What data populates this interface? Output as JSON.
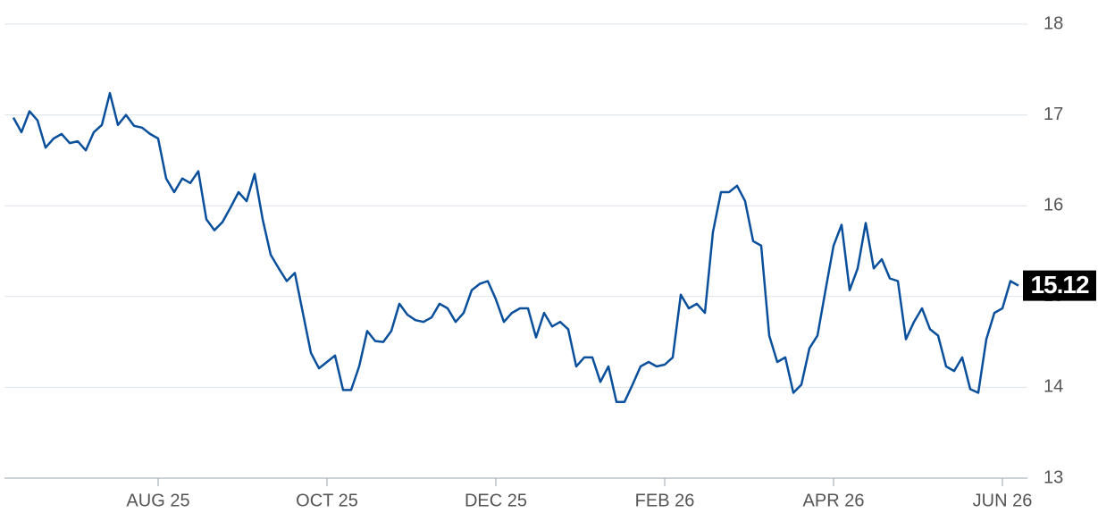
{
  "chart_data": {
    "type": "line",
    "color": "#0a4f9c",
    "categories": [
      null,
      null,
      null,
      null,
      null,
      null,
      null,
      null,
      null,
      null,
      null,
      null,
      null,
      null,
      null,
      null,
      null,
      null,
      "AUG 25",
      null,
      null,
      null,
      null,
      null,
      null,
      null,
      null,
      null,
      null,
      null,
      null,
      null,
      null,
      null,
      null,
      null,
      null,
      null,
      null,
      "OCT 25",
      null,
      null,
      null,
      null,
      null,
      null,
      null,
      null,
      null,
      null,
      null,
      null,
      null,
      null,
      null,
      null,
      null,
      null,
      null,
      null,
      "DEC 25",
      null,
      null,
      null,
      null,
      null,
      null,
      null,
      null,
      null,
      null,
      null,
      null,
      null,
      null,
      null,
      null,
      null,
      null,
      null,
      null,
      "FEB 26",
      null,
      null,
      null,
      null,
      null,
      null,
      null,
      null,
      null,
      null,
      null,
      null,
      null,
      null,
      null,
      null,
      null,
      null,
      null,
      null,
      "APR 26",
      null,
      null,
      null,
      null,
      null,
      null,
      null,
      null,
      null,
      null,
      null,
      null,
      null,
      null,
      null,
      null,
      null,
      null,
      null,
      null,
      "JUN 26",
      null,
      null
    ],
    "values": [
      16.97,
      16.81,
      17.04,
      16.94,
      16.64,
      16.74,
      16.79,
      16.69,
      16.71,
      16.61,
      16.81,
      16.89,
      17.24,
      16.89,
      17.0,
      16.88,
      16.86,
      16.79,
      16.74,
      16.3,
      16.15,
      16.3,
      16.25,
      16.38,
      15.85,
      15.73,
      15.82,
      15.98,
      16.15,
      16.05,
      16.35,
      15.85,
      15.46,
      15.31,
      15.17,
      15.26,
      14.82,
      14.38,
      14.21,
      14.28,
      14.35,
      13.97,
      13.97,
      14.23,
      14.62,
      14.51,
      14.5,
      14.62,
      14.92,
      14.8,
      14.74,
      14.72,
      14.77,
      14.92,
      14.87,
      14.72,
      14.82,
      15.07,
      15.14,
      15.17,
      14.97,
      14.72,
      14.82,
      14.87,
      14.87,
      14.55,
      14.82,
      14.67,
      14.72,
      14.64,
      14.23,
      14.33,
      14.33,
      14.06,
      14.23,
      13.84,
      13.84,
      14.03,
      14.23,
      14.28,
      14.23,
      14.25,
      14.33,
      15.02,
      14.87,
      14.92,
      14.82,
      15.71,
      16.15,
      16.15,
      16.22,
      16.05,
      15.61,
      15.56,
      14.57,
      14.28,
      14.33,
      13.94,
      14.03,
      14.43,
      14.57,
      15.07,
      15.56,
      15.79,
      15.07,
      15.31,
      15.81,
      15.31,
      15.41,
      15.2,
      15.17,
      14.53,
      14.72,
      14.87,
      14.64,
      14.57,
      14.23,
      14.18,
      14.33,
      13.98,
      13.94,
      14.53,
      14.82,
      14.87,
      15.17,
      15.12
    ],
    "ylim": [
      13,
      18
    ],
    "yticks": [
      13,
      14,
      15,
      16,
      17,
      18
    ],
    "grid": true
  }
}
